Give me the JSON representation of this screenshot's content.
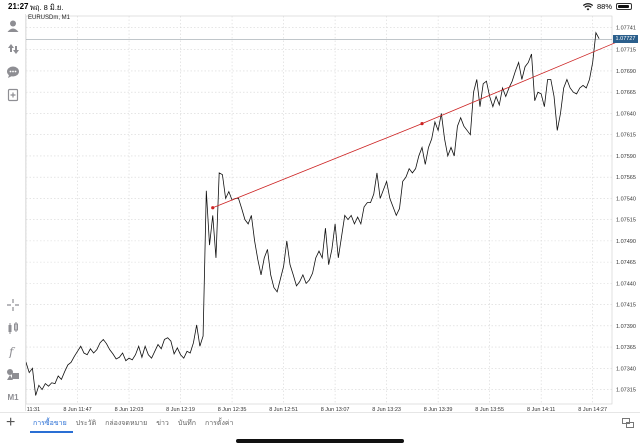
{
  "status": {
    "time": "21:27",
    "date": "พฤ. 8 มิ.ย.",
    "battery": "88%",
    "battery_level": 0.88
  },
  "toolbar": {
    "items": [
      {
        "name": "account-icon"
      },
      {
        "name": "trade-arrows-icon"
      },
      {
        "name": "chat-icon"
      },
      {
        "name": "new-order-icon"
      },
      {
        "name": "crosshair-icon"
      },
      {
        "name": "chart-type-icon"
      },
      {
        "name": "indicators-icon"
      },
      {
        "name": "objects-icon"
      },
      {
        "name": "timeframe-button",
        "label": "M1"
      }
    ]
  },
  "chart": {
    "symbol": "EURUSDm, M1",
    "current_price": "1.07727",
    "colors": {
      "price_line": "#111111",
      "trendline": "#cc2222",
      "grid": "#d6d6d6",
      "price_tag": "#2b5f8c",
      "bid_line": "#9aa3aa"
    }
  },
  "chart_data": {
    "type": "line",
    "y_ticks": [
      "1.07741",
      "1.07715",
      "1.07690",
      "1.07665",
      "1.07640",
      "1.07615",
      "1.07590",
      "1.07565",
      "1.07540",
      "1.07515",
      "1.07490",
      "1.07465",
      "1.07440",
      "1.07415",
      "1.07390",
      "1.07365",
      "1.07340",
      "1.07315"
    ],
    "x_ticks": [
      "8 Jun 11:31",
      "8 Jun 11:47",
      "8 Jun 12:03",
      "8 Jun 12:19",
      "8 Jun 12:35",
      "8 Jun 12:51",
      "8 Jun 13:07",
      "8 Jun 13:23",
      "8 Jun 13:39",
      "8 Jun 13:55",
      "8 Jun 14:11",
      "8 Jun 14:27"
    ],
    "ylim": [
      1.07298,
      1.0775
    ],
    "xlim": [
      0,
      182
    ],
    "x_start_index": 5,
    "y": [
      1.07355,
      1.07352,
      1.07358,
      1.07353,
      1.07345,
      1.07347,
      1.07335,
      1.0734,
      1.07308,
      1.0732,
      1.07315,
      1.07322,
      1.07319,
      1.07323,
      1.07322,
      1.07331,
      1.07327,
      1.07336,
      1.07344,
      1.07347,
      1.07354,
      1.0736,
      1.07366,
      1.07358,
      1.07356,
      1.07363,
      1.07358,
      1.07362,
      1.0737,
      1.07374,
      1.07369,
      1.07362,
      1.07357,
      1.07351,
      1.07353,
      1.07358,
      1.07349,
      1.07352,
      1.0735,
      1.07356,
      1.07366,
      1.07353,
      1.07366,
      1.07356,
      1.07352,
      1.0736,
      1.07368,
      1.07363,
      1.07374,
      1.07376,
      1.07372,
      1.07357,
      1.07364,
      1.07356,
      1.07352,
      1.0736,
      1.07358,
      1.0737,
      1.07391,
      1.07366,
      1.07378,
      1.07549,
      1.07485,
      1.0752,
      1.0747,
      1.0757,
      1.07568,
      1.0754,
      1.07548,
      1.07538,
      1.0754,
      1.0754,
      1.07528,
      1.07515,
      1.0751,
      1.0752,
      1.0749,
      1.07468,
      1.0745,
      1.0747,
      1.0748,
      1.0745,
      1.07435,
      1.0743,
      1.07445,
      1.0746,
      1.0749,
      1.07462,
      1.0745,
      1.07437,
      1.07442,
      1.0745,
      1.0744,
      1.07444,
      1.07452,
      1.0747,
      1.07478,
      1.0747,
      1.07505,
      1.07462,
      1.0748,
      1.0751,
      1.0747,
      1.07495,
      1.0752,
      1.07515,
      1.0752,
      1.0751,
      1.07518,
      1.0751,
      1.0753,
      1.07535,
      1.07535,
      1.07545,
      1.0757,
      1.0754,
      1.0755,
      1.0756,
      1.0754,
      1.0753,
      1.0752,
      1.07528,
      1.0756,
      1.07565,
      1.07575,
      1.0757,
      1.07575,
      1.0759,
      1.076,
      1.0758,
      1.076,
      1.0761,
      1.0763,
      1.0762,
      1.0764,
      1.0761,
      1.0759,
      1.076,
      1.0759,
      1.07625,
      1.07635,
      1.07625,
      1.0762,
      1.07615,
      1.07665,
      1.0768,
      1.07648,
      1.07675,
      1.07678,
      1.0766,
      1.07648,
      1.0766,
      1.0765,
      1.0767,
      1.0766,
      1.0767,
      1.07678,
      1.0769,
      1.077,
      1.0768,
      1.07695,
      1.077,
      1.0771,
      1.07655,
      1.07665,
      1.07663,
      1.07648,
      1.0768,
      1.0768,
      1.0766,
      1.0762,
      1.0764,
      1.0767,
      1.0768,
      1.0767,
      1.07665,
      1.07663,
      1.0767,
      1.07673,
      1.0767,
      1.0768,
      1.077,
      1.07735,
      1.07728
    ],
    "trendline": {
      "points": [
        [
          58,
          1.07529
        ],
        [
          123,
          1.07628
        ],
        [
          186,
          1.07728
        ]
      ]
    },
    "current_price": 1.07727
  },
  "bottom": {
    "tabs": [
      {
        "label": "การซื้อขาย",
        "active": true
      },
      {
        "label": "ประวัติ",
        "active": false
      },
      {
        "label": "กล่องจดหมาย",
        "active": false
      },
      {
        "label": "ข่าว",
        "active": false
      },
      {
        "label": "บันทึก",
        "active": false
      },
      {
        "label": "การตั้งค่า",
        "active": false
      }
    ]
  }
}
